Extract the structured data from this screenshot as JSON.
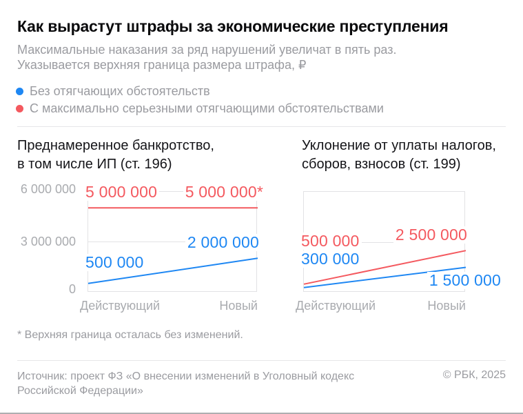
{
  "header": {
    "title": "Как вырастут штрафы за экономические преступления",
    "subtitle_line1": "Максимальные наказания за ряд нарушений увеличат в пять раз.",
    "subtitle_line2": "Указывается верхняя граница размера штрафа, ₽"
  },
  "legend": {
    "items": [
      {
        "label": "Без отягчающих обстоятельств",
        "color": "#1e87f3"
      },
      {
        "label": "С максимально серьезными отягчающими обстоятельствами",
        "color": "#f4595f"
      }
    ]
  },
  "colors": {
    "blue": "#1e87f3",
    "red": "#f4595f",
    "grid": "#e2e2e4",
    "text_gray": "#9a9ba0",
    "tick_gray": "#a9abaf",
    "title_black": "#0a0a0c"
  },
  "chart_data": [
    {
      "type": "line",
      "title_line1": "Преднамеренное банкротство,",
      "title_line2": "в том числе ИП (ст. 196)",
      "categories": [
        "Действующий",
        "Новый"
      ],
      "ylim": [
        0,
        6000000
      ],
      "y_ticks": [
        "6 000 000",
        "3 000 000",
        "0"
      ],
      "grid_values": [
        6000000,
        3000000,
        0
      ],
      "series": [
        {
          "name": "Без отягчающих обстоятельств",
          "color": "blue",
          "values": [
            500000,
            2000000
          ],
          "labels": [
            "500 000",
            "2 000 000"
          ]
        },
        {
          "name": "С максимально серьезными отягчающими обстоятельствами",
          "color": "red",
          "values": [
            5000000,
            5000000
          ],
          "labels": [
            "5 000 000",
            "5 000 000*"
          ]
        }
      ]
    },
    {
      "type": "line",
      "title_line1": "Уклонение от уплаты налогов,",
      "title_line2": "сборов, взносов (ст. 199)",
      "categories": [
        "Действующий",
        "Новый"
      ],
      "ylim": [
        0,
        6000000
      ],
      "grid_values": [
        6000000,
        3000000,
        0
      ],
      "series": [
        {
          "name": "Без отягчающих обстоятельств",
          "color": "blue",
          "values": [
            300000,
            1500000
          ],
          "labels": [
            "300 000",
            "1 500 000"
          ]
        },
        {
          "name": "С максимально серьезными отягчающими обстоятельствами",
          "color": "red",
          "values": [
            500000,
            2500000
          ],
          "labels": [
            "500 000",
            "2 500 000"
          ]
        }
      ]
    }
  ],
  "footnote": "* Верхняя граница осталась без изменений.",
  "source": {
    "line1": "Источник: проект ФЗ «О внесении изменений в Уголовный кодекс",
    "line2": "Российской Федерации»",
    "copyright": "© РБК, 2025"
  }
}
